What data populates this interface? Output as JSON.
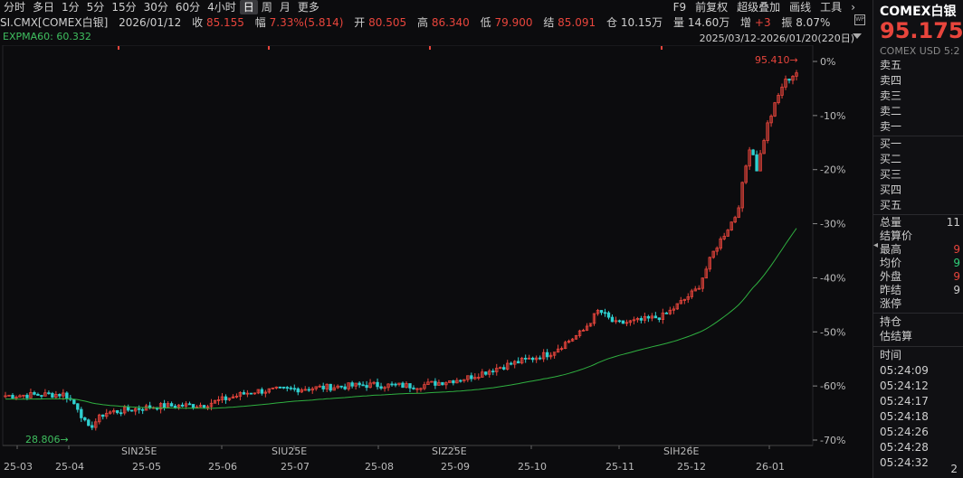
{
  "toolbar": {
    "tabs": [
      "分时",
      "多日",
      "1分",
      "5分",
      "15分",
      "30分",
      "60分",
      "4小时",
      "日",
      "周",
      "月",
      "更多"
    ],
    "active_index": 8,
    "right_items": [
      "F9",
      "前复权",
      "超级叠加",
      "画线",
      "工具"
    ]
  },
  "info": {
    "symbol": "SI.CMX[COMEX白银]",
    "date": "2026/01/12",
    "close_label": "收",
    "close": "85.155",
    "change_label": "幅",
    "change": "7.33%(5.814)",
    "open_label": "开",
    "open": "80.505",
    "high_label": "高",
    "high": "86.340",
    "low_label": "低",
    "low": "79.900",
    "settle_label": "结",
    "settle": "85.091",
    "oi_label": "仓",
    "oi": "10.15万",
    "vol_label": "量",
    "vol": "14.60万",
    "incr_label": "增",
    "incr": "+3",
    "amp_label": "振",
    "amp": "8.07%"
  },
  "ema_label": "EXPMA60: 60.332",
  "range_label": "2025/03/12-2026/01/20(220日)",
  "chart_data": {
    "type": "candlestick",
    "y_axis_ticks": [
      "0%",
      "-10%",
      "-20%",
      "-30%",
      "-40%",
      "-50%",
      "-60%",
      "-70%"
    ],
    "y_axis_values": [
      0,
      -10,
      -20,
      -30,
      -40,
      -50,
      -60,
      -70
    ],
    "x_axis_ticks": [
      "25-03",
      "25-04",
      "25-05",
      "25-06",
      "25-07",
      "25-08",
      "25-09",
      "25-10",
      "25-11",
      "25-12",
      "26-01"
    ],
    "contract_labels": [
      "SIN25E",
      "SIU25E",
      "SIZ25E",
      "SIH26E"
    ],
    "max_label": "95.410",
    "min_label": "28.806",
    "colors": {
      "up": "#e8453c",
      "down": "#2fd0d0",
      "ema": "#2fb040",
      "grid": "#2a2a2e"
    }
  },
  "side": {
    "title": "COMEX白银",
    "price": "95.175",
    "sub": "COMEX USD 5:2",
    "order_book": [
      "卖五",
      "卖四",
      "卖三",
      "卖二",
      "卖一",
      "买一",
      "买二",
      "买三",
      "买四",
      "买五"
    ],
    "stats": [
      {
        "label": "总量",
        "value": "11"
      },
      {
        "label": "结算价",
        "value": ""
      },
      {
        "label": "最高",
        "value": "9"
      },
      {
        "label": "均价",
        "value": "9"
      },
      {
        "label": "外盘",
        "value": "9"
      },
      {
        "label": "昨结",
        "value": "9"
      },
      {
        "label": "涨停",
        "value": ""
      }
    ],
    "stats2": [
      "持仓",
      "估结算"
    ],
    "time_header": "时间",
    "times": [
      "05:24:09",
      "05:24:12",
      "05:24:17",
      "05:24:18",
      "05:24:26",
      "05:24:28",
      "05:24:32"
    ],
    "bottom_num": "2"
  }
}
